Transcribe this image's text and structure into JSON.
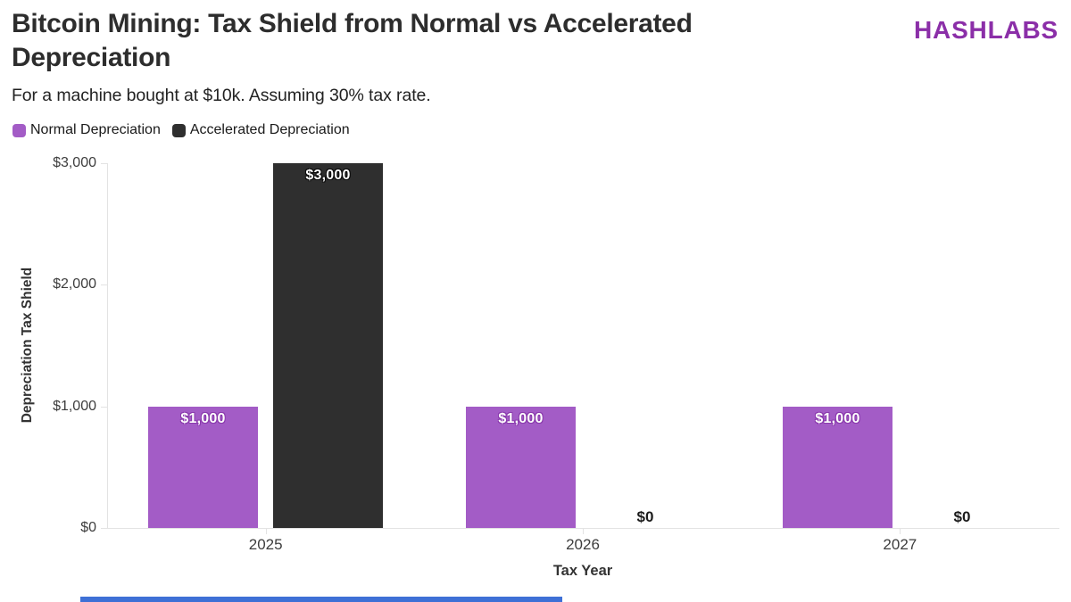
{
  "header": {
    "title": "Bitcoin Mining: Tax Shield from Normal vs Accelerated Depreciation",
    "subtitle": "For a machine bought at $10k. Assuming 30% tax rate.",
    "logo": "HASHLABS"
  },
  "colors": {
    "brand_logo": "#8b2fa8",
    "normal_series": "#a35cc6",
    "normal_label_outline": "#8a3aad",
    "accelerated_series": "#2f2f2f",
    "accelerated_label_outline": "#0a0a0a",
    "bottom_bar": "#3e70d6"
  },
  "chart_data": {
    "type": "bar",
    "title": "Bitcoin Mining: Tax Shield from Normal vs Accelerated Depreciation",
    "categories": [
      "2025",
      "2026",
      "2027"
    ],
    "series": [
      {
        "name": "Normal Depreciation",
        "color": "#a35cc6",
        "outline": "#8a3aad",
        "values": [
          1000,
          1000,
          1000
        ],
        "value_labels": [
          "$1,000",
          "$1,000",
          "$1,000"
        ]
      },
      {
        "name": "Accelerated Depreciation",
        "color": "#2f2f2f",
        "outline": "#0a0a0a",
        "values": [
          3000,
          0,
          0
        ],
        "value_labels": [
          "$3,000",
          "$0",
          "$0"
        ]
      }
    ],
    "xlabel": "Tax Year",
    "ylabel": "Depreciation Tax Shield",
    "ylim": [
      0,
      3000
    ],
    "yticks": [
      {
        "value": 0,
        "label": "$0"
      },
      {
        "value": 1000,
        "label": "$1,000"
      },
      {
        "value": 2000,
        "label": "$2,000"
      },
      {
        "value": 3000,
        "label": "$3,000"
      }
    ],
    "grid": false,
    "legend_position": "top-left"
  }
}
